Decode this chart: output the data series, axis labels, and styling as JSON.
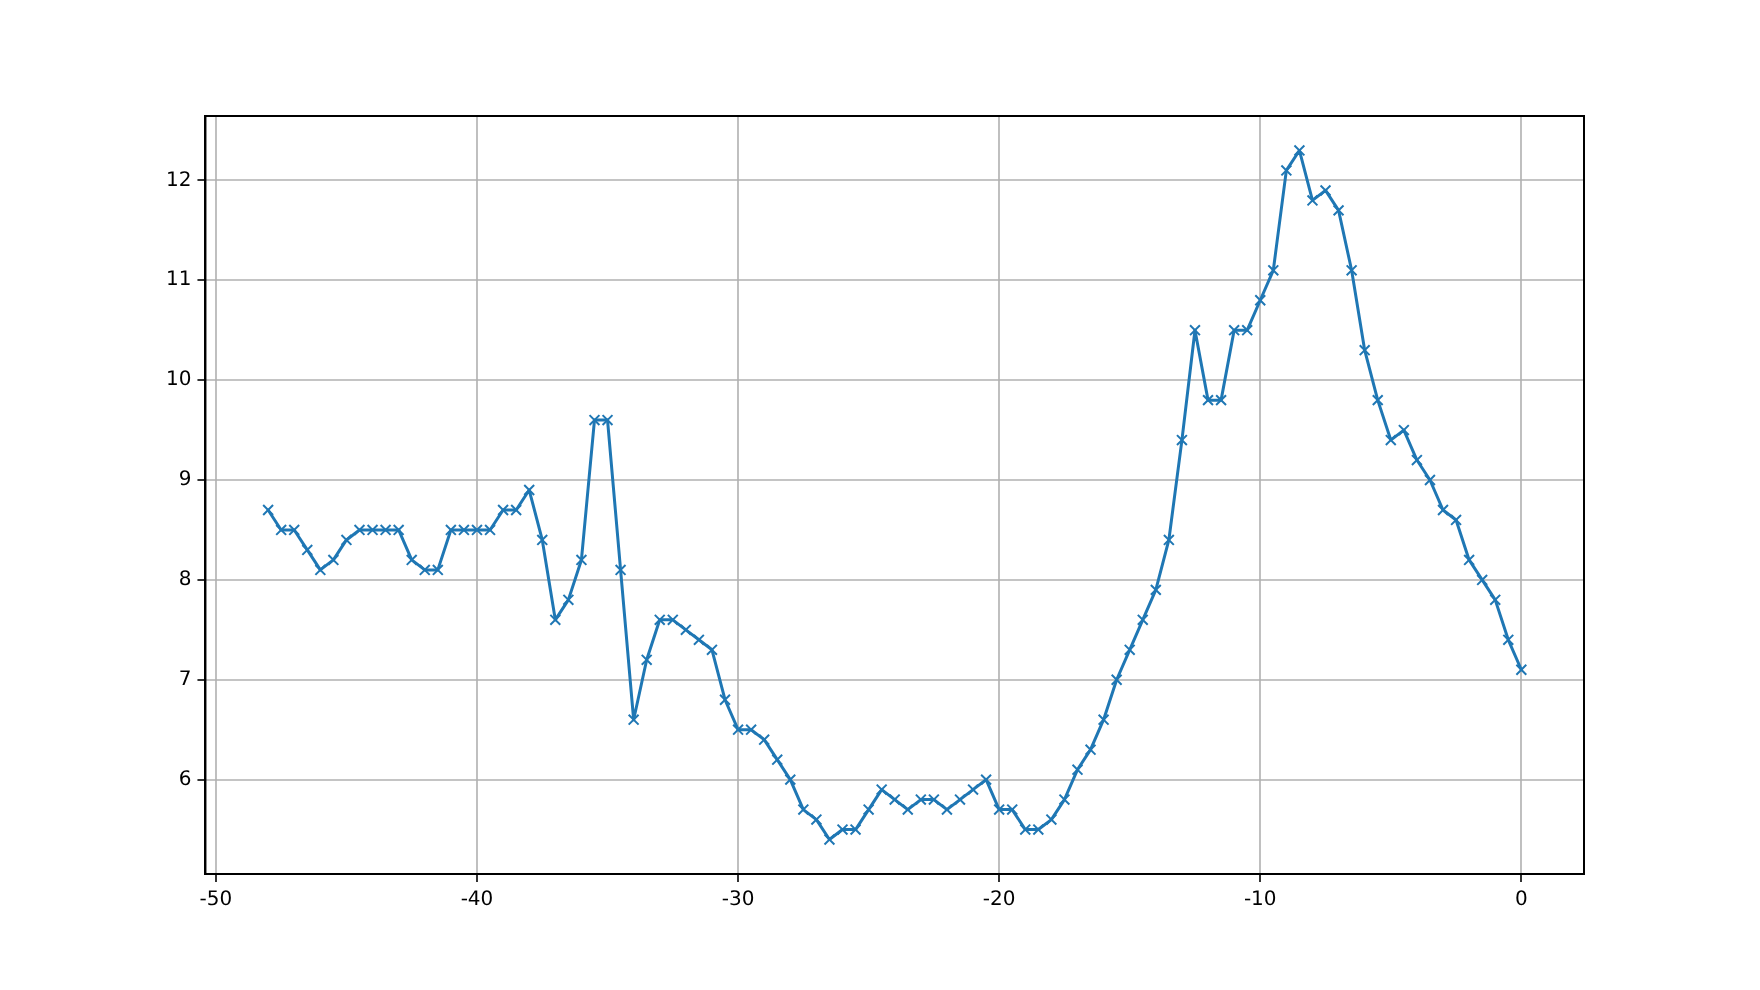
{
  "chart_data": {
    "type": "line",
    "x": [
      -48,
      -47.5,
      -47,
      -46.5,
      -46,
      -45.5,
      -45,
      -44.5,
      -44,
      -43.5,
      -43,
      -42.5,
      -42,
      -41.5,
      -41,
      -40.5,
      -40,
      -39.5,
      -39,
      -38.5,
      -38,
      -37.5,
      -37,
      -36.5,
      -36,
      -35.5,
      -35,
      -34.5,
      -34,
      -33.5,
      -33,
      -32.5,
      -32,
      -31.5,
      -31,
      -30.5,
      -30,
      -29.5,
      -29,
      -28.5,
      -28,
      -27.5,
      -27,
      -26.5,
      -26,
      -25.5,
      -25,
      -24.5,
      -24,
      -23.5,
      -23,
      -22.5,
      -22,
      -21.5,
      -21,
      -20.5,
      -20,
      -19.5,
      -19,
      -18.5,
      -18,
      -17.5,
      -17,
      -16.5,
      -16,
      -15.5,
      -15,
      -14.5,
      -14,
      -13.5,
      -13,
      -12.5,
      -12,
      -11.5,
      -11,
      -10.5,
      -10,
      -9.5,
      -9,
      -8.5,
      -8,
      -7.5,
      -7,
      -6.5,
      -6,
      -5.5,
      -5,
      -4.5,
      -4,
      -3.5,
      -3,
      -2.5,
      -2,
      -1.5,
      -1,
      -0.5,
      0
    ],
    "series": [
      {
        "color": "#1f77b4",
        "values": [
          8.7,
          8.5,
          8.5,
          8.3,
          8.1,
          8.2,
          8.4,
          8.5,
          8.5,
          8.5,
          8.5,
          8.2,
          8.1,
          8.1,
          8.5,
          8.5,
          8.5,
          8.5,
          8.7,
          8.7,
          8.9,
          8.4,
          7.6,
          7.8,
          8.2,
          9.6,
          9.6,
          8.1,
          6.6,
          7.2,
          7.6,
          7.6,
          7.5,
          7.4,
          7.3,
          6.8,
          6.5,
          6.5,
          6.4,
          6.2,
          6.0,
          5.7,
          5.6,
          5.4,
          5.5,
          5.5,
          5.7,
          5.9,
          5.8,
          5.7,
          5.8,
          5.8,
          5.7,
          5.8,
          5.9,
          6.0,
          5.7,
          5.7,
          5.5,
          5.5,
          5.6,
          5.8,
          6.1,
          6.3,
          6.6,
          7.0,
          7.3,
          7.6,
          7.9,
          8.4,
          9.4,
          10.5,
          9.8,
          9.8,
          10.5,
          10.5,
          10.8,
          11.1,
          12.1,
          12.3,
          11.8,
          11.9,
          11.7,
          11.1,
          10.3,
          9.8,
          9.4,
          9.5,
          9.2,
          9.0,
          8.7,
          8.6,
          8.2,
          8.0,
          7.8,
          7.4,
          7.1
        ]
      }
    ],
    "xlim": [
      -50.4,
      2.4
    ],
    "xticks": [
      -50,
      -40,
      -30,
      -20,
      -10,
      0
    ],
    "ylim": [
      5.055,
      12.645
    ],
    "yticks": [
      6,
      7,
      8,
      9,
      10,
      11,
      12
    ],
    "grid": true,
    "marker": "cross",
    "line_style": "solid"
  }
}
